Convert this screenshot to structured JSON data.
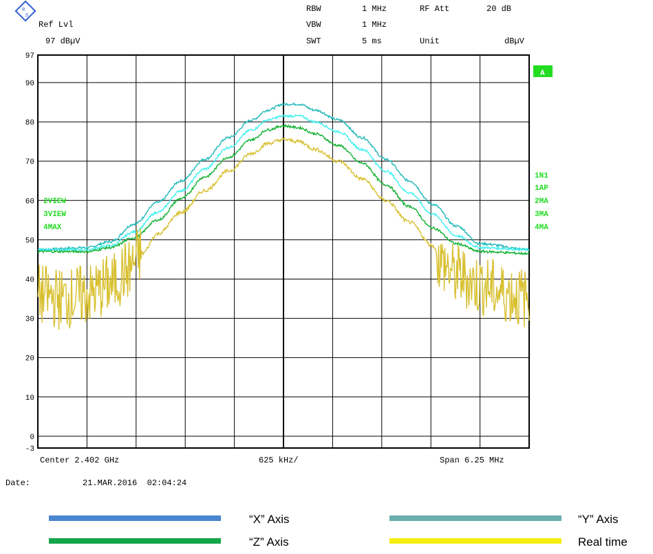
{
  "header": {
    "ref_lvl_label": "Ref Lvl",
    "ref_lvl_value": "97 dBµV",
    "rbw_label": "RBW",
    "rbw_value": "1 MHz",
    "rf_att_label": "RF Att",
    "rf_att_value": "20 dB",
    "vbw_label": "VBW",
    "vbw_value": "1 MHz",
    "swt_label": "SWT",
    "swt_value": "5 ms",
    "unit_label": "Unit",
    "unit_value": "dBµV"
  },
  "markers": {
    "a_badge": "A",
    "left_labels": [
      "2VIEW",
      "3VIEW",
      "4MAX"
    ],
    "right_labels": [
      "1N1",
      "1AP",
      "2MA",
      "3MA",
      "4MA"
    ]
  },
  "footer": {
    "center": "Center 2.402 GHz",
    "per_div": "625 kHz/",
    "span": "Span 6.25 MHz",
    "date_label": "Date:",
    "date_value": "21.MAR.2016  02:04:24"
  },
  "legend": [
    {
      "label": "“X” Axis",
      "color": "#4a86d0"
    },
    {
      "label": "“Y” Axis",
      "color": "#6aaeb0"
    },
    {
      "label": "“Z” Axis",
      "color": "#14a64a"
    },
    {
      "label": "Real time",
      "color": "#f6ee10"
    }
  ],
  "chart_data": {
    "type": "line",
    "xlabel": "",
    "ylabel": "",
    "x_center_ghz": 2.402,
    "x_span_mhz": 6.25,
    "xlim_mhz": [
      -3.125,
      3.125
    ],
    "ylim": [
      -3,
      97
    ],
    "y_ticks": [
      -3,
      0,
      10,
      20,
      30,
      40,
      50,
      60,
      70,
      80,
      90,
      97
    ],
    "grid": true,
    "series": [
      {
        "color": "#20b8b8",
        "x": [
          -3.125,
          -2.5,
          -2.2,
          -1.9,
          -1.6,
          -1.3,
          -1.0,
          -0.7,
          -0.4,
          -0.2,
          0.0,
          0.2,
          0.4,
          0.7,
          1.0,
          1.3,
          1.6,
          1.9,
          2.2,
          2.5,
          3.125
        ],
        "values": [
          47.5,
          48,
          49.5,
          54,
          59.5,
          65,
          70.5,
          76,
          80.5,
          83,
          84.5,
          84.5,
          83,
          80.5,
          76,
          70.5,
          65,
          59,
          53.5,
          49,
          47.5
        ]
      },
      {
        "color": "#40f0f0",
        "x": [
          -3.125,
          -2.5,
          -2.2,
          -1.9,
          -1.6,
          -1.3,
          -1.0,
          -0.7,
          -0.4,
          -0.2,
          0.0,
          0.2,
          0.4,
          0.7,
          1.0,
          1.3,
          1.6,
          1.9,
          2.2,
          2.5,
          3.125
        ],
        "values": [
          47.5,
          47.5,
          48.5,
          52,
          57,
          62.5,
          68,
          73.5,
          78,
          80.5,
          81.5,
          81.5,
          80,
          77.5,
          73,
          67.5,
          62,
          56.5,
          51,
          48,
          47.5
        ]
      },
      {
        "color": "#10b030",
        "x": [
          -3.125,
          -2.5,
          -2.2,
          -1.9,
          -1.6,
          -1.3,
          -1.0,
          -0.7,
          -0.4,
          -0.2,
          0.0,
          0.2,
          0.4,
          0.7,
          1.0,
          1.3,
          1.6,
          1.9,
          2.2,
          2.5,
          3.125
        ],
        "values": [
          47,
          47,
          48,
          50.5,
          55,
          60.5,
          66,
          71,
          75.5,
          78,
          79,
          78.5,
          77,
          74,
          69.5,
          64,
          58.5,
          53,
          49,
          47,
          46.5
        ]
      },
      {
        "color": "#d8c030",
        "x": [
          -3.125,
          -2.8,
          -2.5,
          -2.2,
          -2.0,
          -1.8,
          -1.6,
          -1.3,
          -1.0,
          -0.7,
          -0.4,
          -0.2,
          0.0,
          0.2,
          0.4,
          0.7,
          1.0,
          1.3,
          1.6,
          1.9,
          2.0,
          2.2,
          2.5,
          2.8,
          3.125
        ],
        "values": [
          36,
          35,
          36,
          38.5,
          42,
          46.5,
          51.5,
          57,
          62.5,
          67.5,
          72,
          74.5,
          75.5,
          75,
          73,
          70,
          65.5,
          60,
          54.5,
          48.5,
          44,
          41,
          38.5,
          36.5,
          35
        ],
        "noise": {
          "xlim": [
            [
              -3.125,
              -1.8
            ],
            [
              1.95,
              3.125
            ]
          ],
          "spread": 8
        }
      }
    ]
  }
}
